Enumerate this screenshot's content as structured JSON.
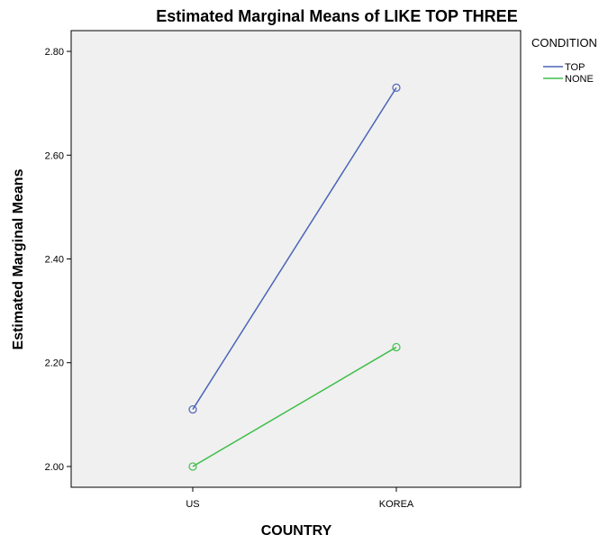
{
  "chart_data": {
    "type": "line",
    "title": "Estimated Marginal Means of LIKE TOP THREE",
    "xlabel": "COUNTRY",
    "ylabel": "Estimated Marginal Means",
    "categories": [
      "US",
      "KOREA"
    ],
    "ylim": [
      1.96,
      2.84
    ],
    "yticks": [
      2.0,
      2.2,
      2.4,
      2.6,
      2.8
    ],
    "ytick_labels": [
      "2.00",
      "2.20",
      "2.40",
      "2.60",
      "2.80"
    ],
    "grid": false,
    "legend": {
      "title": "CONDITION",
      "placement": "right"
    },
    "series": [
      {
        "name": "TOP",
        "values": [
          2.11,
          2.73
        ],
        "color": "#4a64b8"
      },
      {
        "name": "NONE",
        "values": [
          2.0,
          2.23
        ],
        "color": "#3fbf4a"
      }
    ]
  },
  "colors": {
    "plot_background": "#f0f0f0",
    "axis": "#000000"
  }
}
